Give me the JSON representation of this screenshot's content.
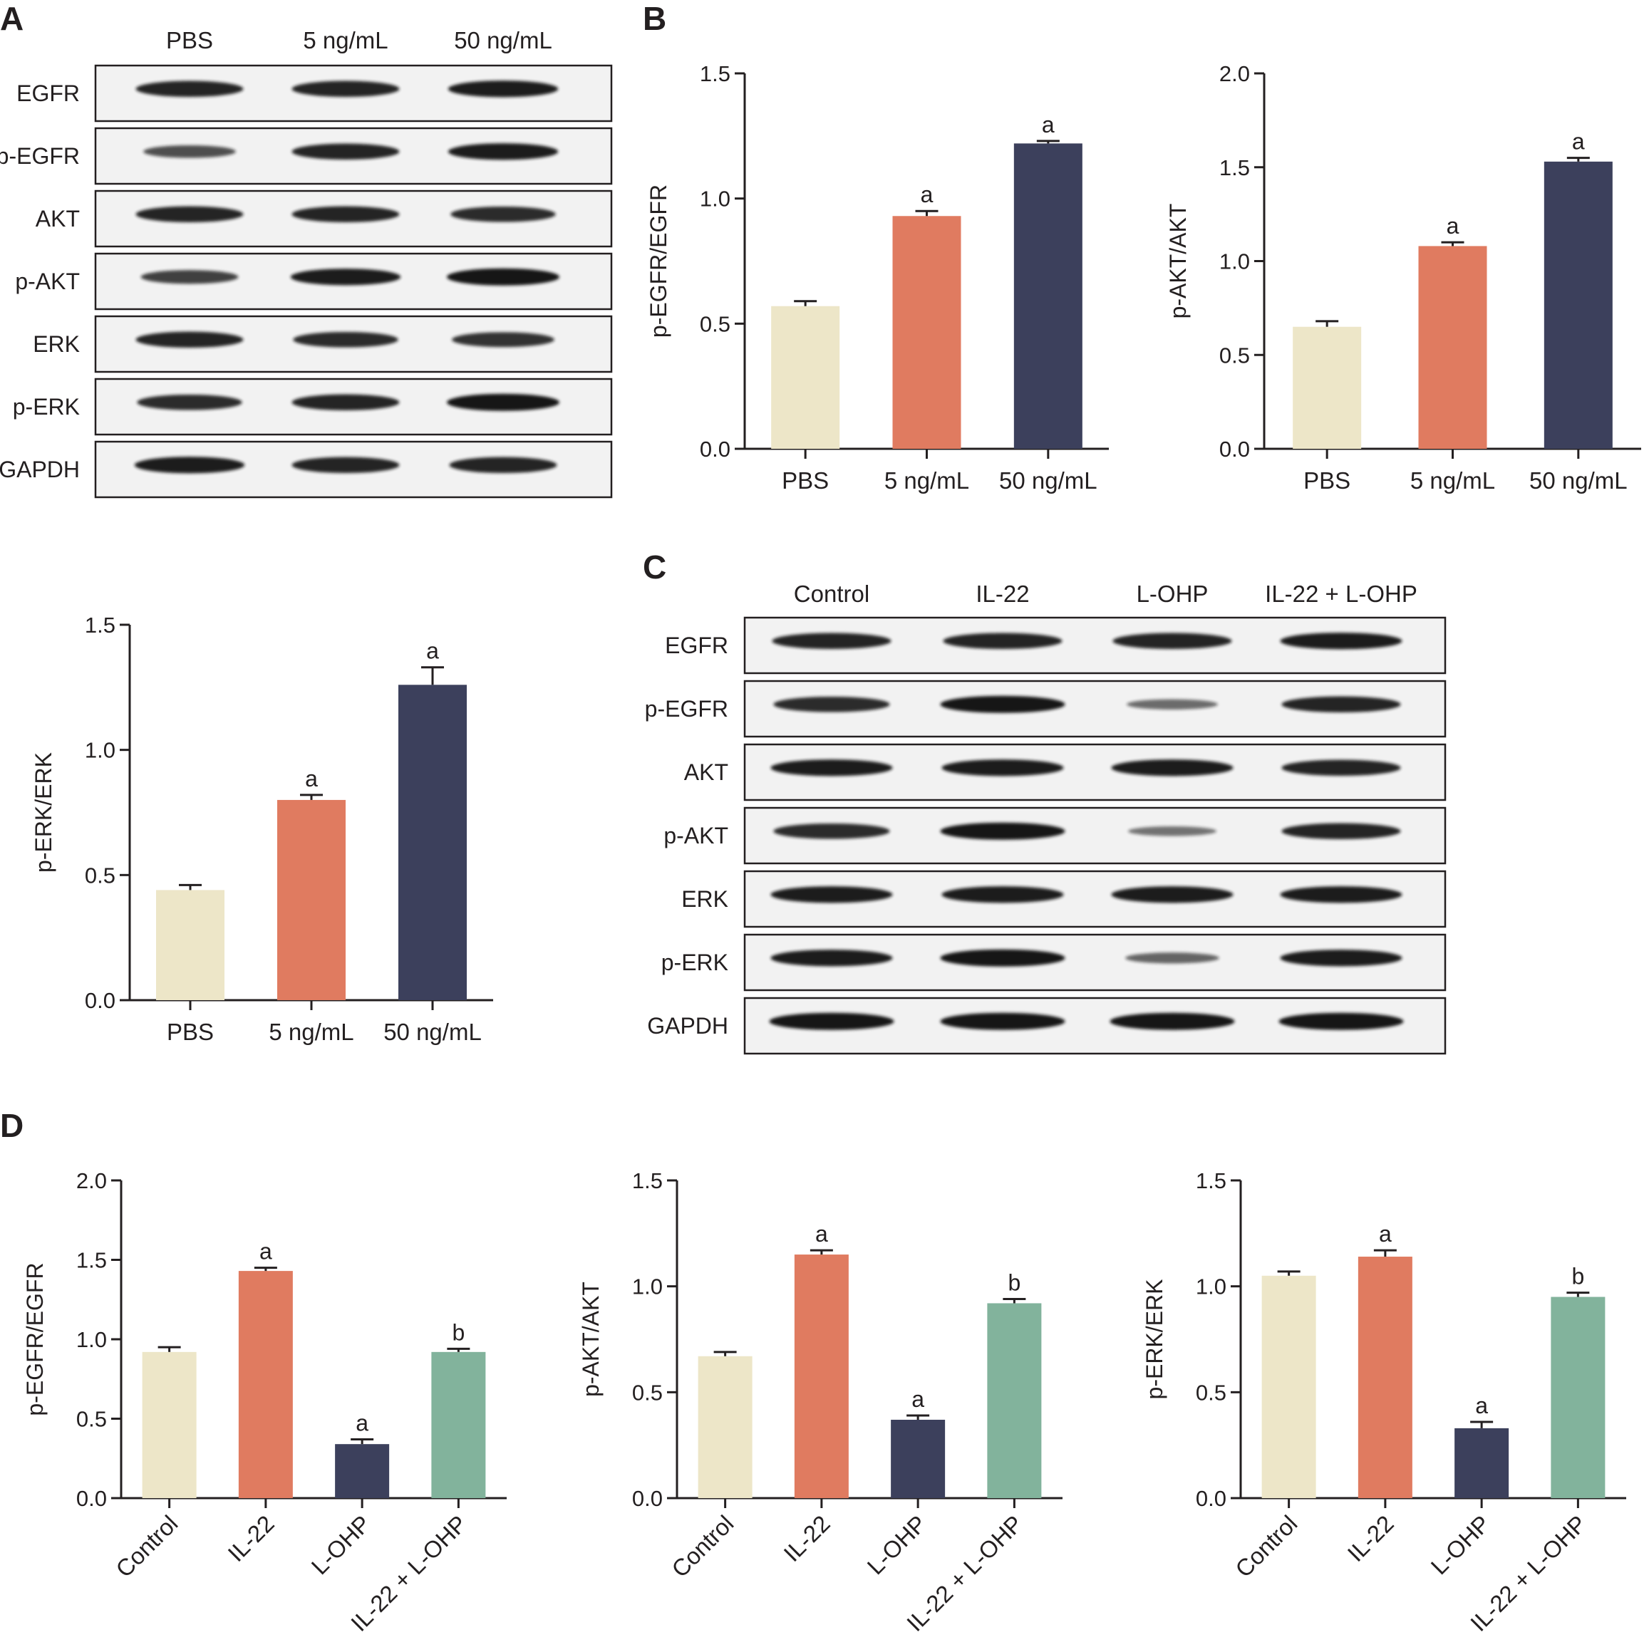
{
  "panel_labels": [
    "A",
    "B",
    "C",
    "D"
  ],
  "colors": {
    "c1": "#ede6c8",
    "c2": "#e07b60",
    "c3": "#3c405c",
    "c4": "#82b39c",
    "blot_bg": "#f2f2f2",
    "band": "#151515"
  },
  "blots": [
    {
      "panel": "A",
      "lanes": [
        "PBS",
        "5 ng/mL",
        "50 ng/mL"
      ],
      "rows": [
        "EGFR",
        "p-EGFR",
        "AKT",
        "p-AKT",
        "ERK",
        "p-ERK",
        "GAPDH"
      ],
      "intensity": [
        [
          0.9,
          0.9,
          0.95
        ],
        [
          0.6,
          0.9,
          0.95
        ],
        [
          0.9,
          0.9,
          0.85
        ],
        [
          0.7,
          0.95,
          1.0
        ],
        [
          0.9,
          0.85,
          0.8
        ],
        [
          0.85,
          0.9,
          1.0
        ],
        [
          0.95,
          0.9,
          0.9
        ]
      ]
    },
    {
      "panel": "C",
      "lanes": [
        "Control",
        "IL-22",
        "L-OHP",
        "IL-22 + L-OHP"
      ],
      "rows": [
        "EGFR",
        "p-EGFR",
        "AKT",
        "p-AKT",
        "ERK",
        "p-ERK",
        "GAPDH"
      ],
      "intensity": [
        [
          0.9,
          0.9,
          0.9,
          0.95
        ],
        [
          0.85,
          1.0,
          0.4,
          0.9
        ],
        [
          0.95,
          0.95,
          0.95,
          0.9
        ],
        [
          0.85,
          1.0,
          0.35,
          0.9
        ],
        [
          0.95,
          0.95,
          0.95,
          0.95
        ],
        [
          0.95,
          1.0,
          0.45,
          0.95
        ],
        [
          1.0,
          1.0,
          1.0,
          1.0
        ]
      ]
    }
  ],
  "chart_data": [
    {
      "panel": "B",
      "type": "bar",
      "categories": [
        "PBS",
        "5 ng/mL",
        "50 ng/mL"
      ],
      "values": [
        0.57,
        0.93,
        1.22
      ],
      "errors": [
        0.02,
        0.02,
        0.01
      ],
      "annotations": [
        "",
        "a",
        "a"
      ],
      "ylabel": "p-EGFR/EGFR",
      "ylim": [
        0,
        1.5
      ],
      "yticks": [
        "0.0",
        "0.5",
        "1.0",
        "1.5"
      ],
      "bar_colors": [
        "#ede6c8",
        "#e07b60",
        "#3c405c"
      ]
    },
    {
      "panel": "B",
      "type": "bar",
      "categories": [
        "PBS",
        "5 ng/mL",
        "50 ng/mL"
      ],
      "values": [
        0.65,
        1.08,
        1.53
      ],
      "errors": [
        0.03,
        0.02,
        0.02
      ],
      "annotations": [
        "",
        "a",
        "a"
      ],
      "ylabel": "p-AKT/AKT",
      "ylim": [
        0,
        2.0
      ],
      "yticks": [
        "0.0",
        "0.5",
        "1.0",
        "1.5",
        "2.0"
      ],
      "bar_colors": [
        "#ede6c8",
        "#e07b60",
        "#3c405c"
      ]
    },
    {
      "panel": "B",
      "type": "bar",
      "categories": [
        "PBS",
        "5 ng/mL",
        "50 ng/mL"
      ],
      "values": [
        0.44,
        0.8,
        1.26
      ],
      "errors": [
        0.02,
        0.02,
        0.07
      ],
      "annotations": [
        "",
        "a",
        "a"
      ],
      "ylabel": "p-ERK/ERK",
      "ylim": [
        0,
        1.5
      ],
      "yticks": [
        "0.0",
        "0.5",
        "1.0",
        "1.5"
      ],
      "bar_colors": [
        "#ede6c8",
        "#e07b60",
        "#3c405c"
      ]
    },
    {
      "panel": "D",
      "type": "bar",
      "categories": [
        "Control",
        "IL-22",
        "L-OHP",
        "IL-22 + L-OHP"
      ],
      "values": [
        0.92,
        1.43,
        0.34,
        0.92
      ],
      "errors": [
        0.03,
        0.02,
        0.03,
        0.02
      ],
      "annotations": [
        "",
        "a",
        "a",
        "b"
      ],
      "ylabel": "p-EGFR/EGFR",
      "ylim": [
        0,
        2.0
      ],
      "yticks": [
        "0.0",
        "0.5",
        "1.0",
        "1.5",
        "2.0"
      ],
      "bar_colors": [
        "#ede6c8",
        "#e07b60",
        "#3c405c",
        "#82b39c"
      ]
    },
    {
      "panel": "D",
      "type": "bar",
      "categories": [
        "Control",
        "IL-22",
        "L-OHP",
        "IL-22 + L-OHP"
      ],
      "values": [
        0.67,
        1.15,
        0.37,
        0.92
      ],
      "errors": [
        0.02,
        0.02,
        0.02,
        0.02
      ],
      "annotations": [
        "",
        "a",
        "a",
        "b"
      ],
      "ylabel": "p-AKT/AKT",
      "ylim": [
        0,
        1.5
      ],
      "yticks": [
        "0.0",
        "0.5",
        "1.0",
        "1.5"
      ],
      "bar_colors": [
        "#ede6c8",
        "#e07b60",
        "#3c405c",
        "#82b39c"
      ]
    },
    {
      "panel": "D",
      "type": "bar",
      "categories": [
        "Control",
        "IL-22",
        "L-OHP",
        "IL-22 + L-OHP"
      ],
      "values": [
        1.05,
        1.14,
        0.33,
        0.95
      ],
      "errors": [
        0.02,
        0.03,
        0.03,
        0.02
      ],
      "annotations": [
        "",
        "a",
        "a",
        "b"
      ],
      "ylabel": "p-ERK/ERK",
      "ylim": [
        0,
        1.5
      ],
      "yticks": [
        "0.0",
        "0.5",
        "1.0",
        "1.5"
      ],
      "bar_colors": [
        "#ede6c8",
        "#e07b60",
        "#3c405c",
        "#82b39c"
      ]
    }
  ]
}
